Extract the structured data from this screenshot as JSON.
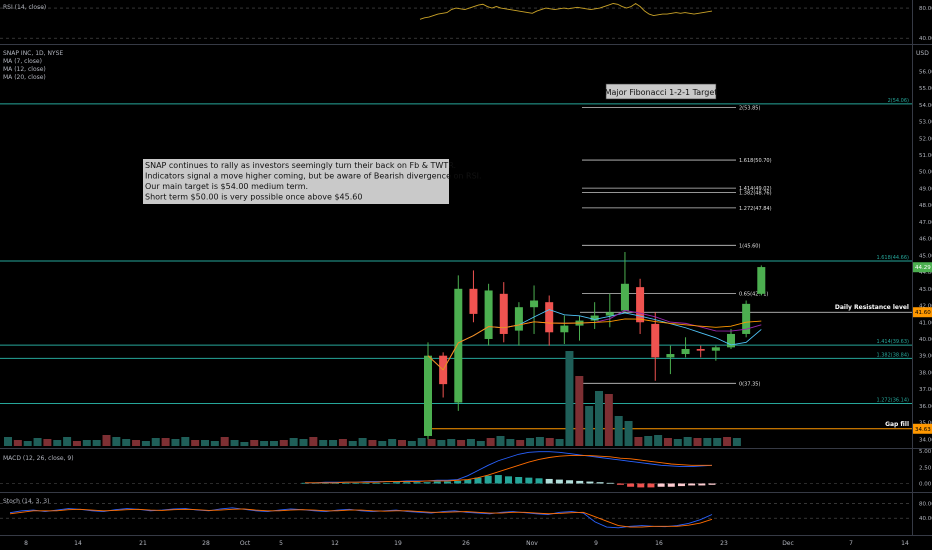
{
  "chart_data": {
    "type": "candlestick",
    "symbol_title": "SNAP INC, 1D, NYSE",
    "currency": "USD",
    "legend": [
      "MA (7, close)",
      "MA (12, close)",
      "MA (20, close)"
    ],
    "price_ticks": [
      "56.00",
      "55.00",
      "54.00",
      "53.00",
      "52.00",
      "51.00",
      "50.00",
      "49.00",
      "48.00",
      "47.00",
      "46.00",
      "45.00",
      "44.00",
      "43.00",
      "42.00",
      "41.00",
      "40.00",
      "39.00",
      "38.00",
      "37.00",
      "36.00",
      "35.00",
      "34.00"
    ],
    "ylim": [
      33.6,
      57.4
    ],
    "x_ticks": [
      "8",
      "14",
      "21",
      "28",
      "Oct",
      "5",
      "12",
      "19",
      "26",
      "Nov",
      "9",
      "16",
      "23",
      "Dec",
      "7",
      "14"
    ],
    "last_price": "44.29",
    "price_tags": [
      {
        "label": "41.60",
        "value": 41.6,
        "color": "#ff9800"
      },
      {
        "label": "34.63",
        "value": 34.63,
        "color": "#ff9800"
      }
    ],
    "horizontal_lines": [
      {
        "label": "2(54.06)",
        "value": 54.06,
        "color": "#26a69a"
      },
      {
        "label": "1.618(44.66)",
        "value": 44.66,
        "color": "#26a69a"
      },
      {
        "label": "1.414(39.63)",
        "value": 39.63,
        "color": "#26a69a"
      },
      {
        "label": "1.382(38.84)",
        "value": 38.84,
        "color": "#26a69a"
      },
      {
        "label": "1.272(36.14)",
        "value": 36.14,
        "color": "#26a69a"
      }
    ],
    "fib_levels": [
      {
        "label": "2(53.85)",
        "value": 53.85
      },
      {
        "label": "1.618(50.70)",
        "value": 50.7
      },
      {
        "label": "1.414(49.02)",
        "value": 49.02
      },
      {
        "label": "1.382(48.76)",
        "value": 48.76
      },
      {
        "label": "1.272(47.84)",
        "value": 47.84
      },
      {
        "label": "1(45.60)",
        "value": 45.6
      },
      {
        "label": "0.65(42.71)",
        "value": 42.71
      },
      {
        "label": "0(37.35)",
        "value": 37.35
      }
    ],
    "annotations": [
      {
        "label": "Daily Resistance level",
        "value": 41.6
      },
      {
        "label": "Gap fill",
        "value": 34.63
      }
    ],
    "text_box_lines": [
      "SNAP continues to rally as investors seemingly turn their back on Fb & TWTR.",
      "Indicators signal a move higher coming, but be aware of Bearish divergence on RSI.",
      "Our main target is $54.00 medium term.",
      "Short term $50.00 is very possible once above $45.60"
    ],
    "target_label": "Major Fibonacci 1-2-1 Target",
    "candles": [
      {
        "o": 34.2,
        "h": 39.8,
        "l": 34.0,
        "c": 39.0
      },
      {
        "o": 39.0,
        "h": 39.2,
        "l": 36.5,
        "c": 37.3
      },
      {
        "o": 36.2,
        "h": 43.8,
        "l": 35.7,
        "c": 43.0
      },
      {
        "o": 43.0,
        "h": 44.1,
        "l": 41.0,
        "c": 41.5
      },
      {
        "o": 40.0,
        "h": 43.3,
        "l": 39.6,
        "c": 42.9
      },
      {
        "o": 42.7,
        "h": 43.4,
        "l": 39.8,
        "c": 40.3
      },
      {
        "o": 40.5,
        "h": 42.2,
        "l": 39.6,
        "c": 41.9
      },
      {
        "o": 41.9,
        "h": 43.2,
        "l": 40.3,
        "c": 42.3
      },
      {
        "o": 42.2,
        "h": 42.6,
        "l": 39.6,
        "c": 40.4
      },
      {
        "o": 40.4,
        "h": 41.4,
        "l": 39.7,
        "c": 40.8
      },
      {
        "o": 40.8,
        "h": 41.4,
        "l": 39.9,
        "c": 41.1
      },
      {
        "o": 41.1,
        "h": 42.2,
        "l": 40.6,
        "c": 41.4
      },
      {
        "o": 41.4,
        "h": 42.7,
        "l": 40.7,
        "c": 41.6
      },
      {
        "o": 41.7,
        "h": 45.2,
        "l": 41.6,
        "c": 43.3
      },
      {
        "o": 43.1,
        "h": 43.6,
        "l": 40.3,
        "c": 41.0
      },
      {
        "o": 40.9,
        "h": 41.6,
        "l": 37.5,
        "c": 38.9
      },
      {
        "o": 38.9,
        "h": 39.6,
        "l": 37.9,
        "c": 39.1
      },
      {
        "o": 39.1,
        "h": 40.1,
        "l": 38.9,
        "c": 39.4
      },
      {
        "o": 39.4,
        "h": 39.6,
        "l": 38.9,
        "c": 39.3
      },
      {
        "o": 39.3,
        "h": 39.6,
        "l": 38.7,
        "c": 39.5
      },
      {
        "o": 39.5,
        "h": 40.6,
        "l": 39.4,
        "c": 40.3
      },
      {
        "o": 40.3,
        "h": 42.3,
        "l": 40.1,
        "c": 42.1
      },
      {
        "o": 42.7,
        "h": 44.4,
        "l": 42.6,
        "c": 44.3
      }
    ],
    "rsi": {
      "title": "RSI (14, close)",
      "ticks": [
        "80.00",
        "40.00"
      ],
      "ylim": [
        35,
        88
      ],
      "values": [
        65,
        67,
        68,
        70,
        72,
        73,
        74,
        78,
        80,
        79,
        78,
        80,
        82,
        84,
        85,
        82,
        80,
        82,
        80,
        79,
        78,
        77,
        76,
        75,
        74,
        73,
        76,
        78,
        80,
        79,
        78,
        79,
        80,
        79,
        80,
        81,
        80,
        79,
        78,
        79,
        80,
        82,
        84,
        86,
        85,
        82,
        80,
        82,
        86,
        82,
        76,
        72,
        70,
        71,
        72,
        72,
        73,
        74,
        73,
        74,
        73,
        72,
        73,
        74,
        75,
        76
      ]
    },
    "macd": {
      "title": "MACD (12, 26, close, 9)",
      "ticks": [
        "5.00",
        "2.50",
        "0.00"
      ],
      "ylim": [
        -1,
        5
      ],
      "hist": [
        0.1,
        0.1,
        0.1,
        0.1,
        0.1,
        0.1,
        0.1,
        0.1,
        0.1,
        0.2,
        0.2,
        0.2,
        0.2,
        0.3,
        0.3,
        0.4,
        0.6,
        0.9,
        1.2,
        1.3,
        1.1,
        1.0,
        0.9,
        0.8,
        0.7,
        0.6,
        0.5,
        0.4,
        0.3,
        0.2,
        0.1,
        -0.2,
        -0.5,
        -0.6,
        -0.6,
        -0.5,
        -0.5,
        -0.4,
        -0.3,
        -0.3,
        -0.2
      ],
      "macd_line": [
        0.1,
        0.1,
        0.2,
        0.2,
        0.2,
        0.2,
        0.3,
        0.3,
        0.3,
        0.3,
        0.4,
        0.4,
        0.4,
        0.5,
        0.5,
        0.6,
        1.2,
        2.0,
        2.8,
        3.5,
        4.0,
        4.5,
        4.8,
        4.9,
        4.9,
        4.8,
        4.6,
        4.4,
        4.2,
        4.0,
        3.8,
        3.6,
        3.4,
        3.2,
        3.0,
        2.8,
        2.7,
        2.6,
        2.6,
        2.7,
        2.8
      ],
      "signal_line": [
        0.1,
        0.1,
        0.1,
        0.1,
        0.2,
        0.2,
        0.2,
        0.2,
        0.3,
        0.3,
        0.3,
        0.3,
        0.4,
        0.4,
        0.4,
        0.5,
        0.6,
        0.9,
        1.3,
        1.8,
        2.3,
        2.8,
        3.3,
        3.7,
        4.0,
        4.2,
        4.3,
        4.3,
        4.3,
        4.2,
        4.1,
        3.9,
        3.8,
        3.6,
        3.4,
        3.2,
        3.0,
        2.9,
        2.8,
        2.8,
        2.8
      ]
    },
    "stoch": {
      "title": "Stoch (14, 3, 3)",
      "ticks": [
        "80.00",
        "40.00"
      ],
      "ylim": [
        0,
        100
      ],
      "k": [
        55,
        60,
        62,
        58,
        62,
        66,
        64,
        60,
        58,
        63,
        66,
        64,
        60,
        62,
        65,
        66,
        62,
        60,
        65,
        68,
        64,
        60,
        58,
        62,
        65,
        63,
        60,
        58,
        62,
        64,
        60,
        58,
        60,
        62,
        58,
        56,
        54,
        58,
        60,
        56,
        54,
        52,
        56,
        58,
        55,
        52,
        50,
        56,
        58,
        54,
        30,
        16,
        14,
        18,
        20,
        18,
        17,
        20,
        26,
        36,
        50
      ],
      "d": [
        52,
        56,
        60,
        60,
        60,
        63,
        64,
        62,
        60,
        61,
        63,
        64,
        62,
        61,
        63,
        64,
        63,
        61,
        62,
        64,
        65,
        62,
        60,
        60,
        62,
        63,
        62,
        60,
        60,
        62,
        62,
        60,
        59,
        60,
        60,
        58,
        56,
        56,
        57,
        58,
        56,
        54,
        54,
        56,
        56,
        54,
        52,
        53,
        55,
        56,
        44,
        32,
        20,
        16,
        16,
        18,
        18,
        18,
        21,
        27,
        37
      ]
    }
  }
}
